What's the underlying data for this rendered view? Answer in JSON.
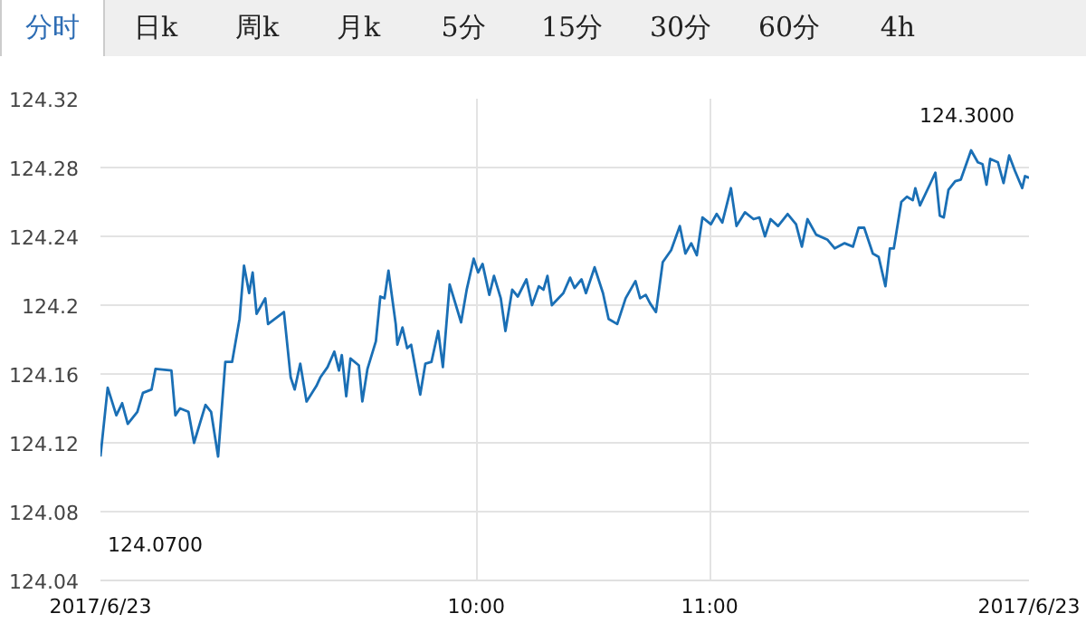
{
  "chart_data": {
    "type": "line",
    "annotations": [
      "分时",
      "日k",
      "周k",
      "月k",
      "5分",
      "15分",
      "30分",
      "60分",
      "4h",
      "124.3000",
      "124.0700"
    ],
    "x": [
      8.39,
      8.421,
      8.458,
      8.483,
      8.507,
      8.548,
      8.572,
      8.609,
      8.626,
      8.694,
      8.711,
      8.731,
      8.767,
      8.791,
      8.84,
      8.864,
      8.894,
      8.925,
      8.954,
      8.986,
      9.005,
      9.027,
      9.042,
      9.059,
      9.096,
      9.108,
      9.176,
      9.205,
      9.222,
      9.246,
      9.273,
      9.315,
      9.332,
      9.363,
      9.392,
      9.412,
      9.424,
      9.443,
      9.461,
      9.497,
      9.512,
      9.534,
      9.57,
      9.589,
      9.607,
      9.624,
      9.655,
      9.662,
      9.684,
      9.704,
      9.721,
      9.76,
      9.782,
      9.808,
      9.837,
      9.857,
      9.886,
      9.935,
      9.959,
      9.989,
      10.008,
      10.027,
      10.056,
      10.076,
      10.105,
      10.125,
      10.154,
      10.178,
      10.215,
      10.239,
      10.268,
      10.288,
      10.305,
      10.324,
      10.373,
      10.402,
      10.421,
      10.451,
      10.47,
      10.507,
      10.543,
      10.567,
      10.604,
      10.64,
      10.682,
      10.702,
      10.726,
      10.745,
      10.77,
      10.799,
      10.835,
      10.872,
      10.896,
      10.921,
      10.945,
      10.969,
      11.005,
      11.03,
      11.054,
      11.091,
      11.115,
      11.151,
      11.188,
      11.213,
      11.237,
      11.261,
      11.293,
      11.334,
      11.37,
      11.395,
      11.419,
      11.456,
      11.505,
      11.536,
      11.578,
      11.614,
      11.638,
      11.662,
      11.699,
      11.724,
      11.753,
      11.772,
      11.789,
      11.821,
      11.845,
      11.87,
      11.881,
      11.901,
      11.943,
      11.967,
      11.986,
      12.003,
      12.023,
      12.052,
      12.076,
      12.12,
      12.149,
      12.169,
      12.186,
      12.202,
      12.235,
      12.259,
      12.283,
      12.308,
      12.339,
      12.351,
      12.368
    ],
    "series": [
      {
        "color": "#1a6fb5",
        "values": [
          124.112,
          124.152,
          124.136,
          124.143,
          124.131,
          124.138,
          124.149,
          124.151,
          124.163,
          124.162,
          124.136,
          124.14,
          124.138,
          124.12,
          124.142,
          124.138,
          124.112,
          124.167,
          124.167,
          124.192,
          124.223,
          124.207,
          124.219,
          124.195,
          124.204,
          124.189,
          124.196,
          124.158,
          124.151,
          124.166,
          124.144,
          124.153,
          124.158,
          124.164,
          124.173,
          124.162,
          124.171,
          124.147,
          124.169,
          124.165,
          124.144,
          124.163,
          124.179,
          124.205,
          124.204,
          124.22,
          124.189,
          124.177,
          124.187,
          124.175,
          124.177,
          124.148,
          124.166,
          124.167,
          124.185,
          124.164,
          124.212,
          124.19,
          124.209,
          124.227,
          124.219,
          124.224,
          124.206,
          124.217,
          124.204,
          124.185,
          124.209,
          124.205,
          124.215,
          124.2,
          124.211,
          124.209,
          124.217,
          124.2,
          124.207,
          124.216,
          124.21,
          124.215,
          124.207,
          124.222,
          124.207,
          124.192,
          124.189,
          124.204,
          124.214,
          124.204,
          124.206,
          124.201,
          124.196,
          124.225,
          124.232,
          124.246,
          124.23,
          124.236,
          124.229,
          124.251,
          124.247,
          124.253,
          124.248,
          124.268,
          124.246,
          124.254,
          124.25,
          124.251,
          124.24,
          124.25,
          124.246,
          124.253,
          124.247,
          124.234,
          124.25,
          124.241,
          124.238,
          124.233,
          124.236,
          124.234,
          124.245,
          124.245,
          124.23,
          124.228,
          124.211,
          124.233,
          124.233,
          124.26,
          124.263,
          124.261,
          124.268,
          124.258,
          124.27,
          124.277,
          124.252,
          124.251,
          124.267,
          124.272,
          124.273,
          124.29,
          124.283,
          124.282,
          124.27,
          124.285,
          124.283,
          124.271,
          124.287,
          124.278,
          124.268,
          124.275,
          124.274
        ]
      }
    ],
    "xlim": [
      8.39,
      12.368
    ],
    "xticks": [
      {
        "value": 8.39,
        "label": "2017/6/23"
      },
      {
        "value": 10,
        "label": "10:00"
      },
      {
        "value": 11,
        "label": "11:00"
      },
      {
        "value": 12.368,
        "label": "2017/6/23"
      }
    ],
    "ylim": [
      124.04,
      124.32
    ],
    "yticks": [
      124.04,
      124.08,
      124.12,
      124.16,
      124.2,
      124.24,
      124.28,
      124.32
    ],
    "grid": true
  }
}
